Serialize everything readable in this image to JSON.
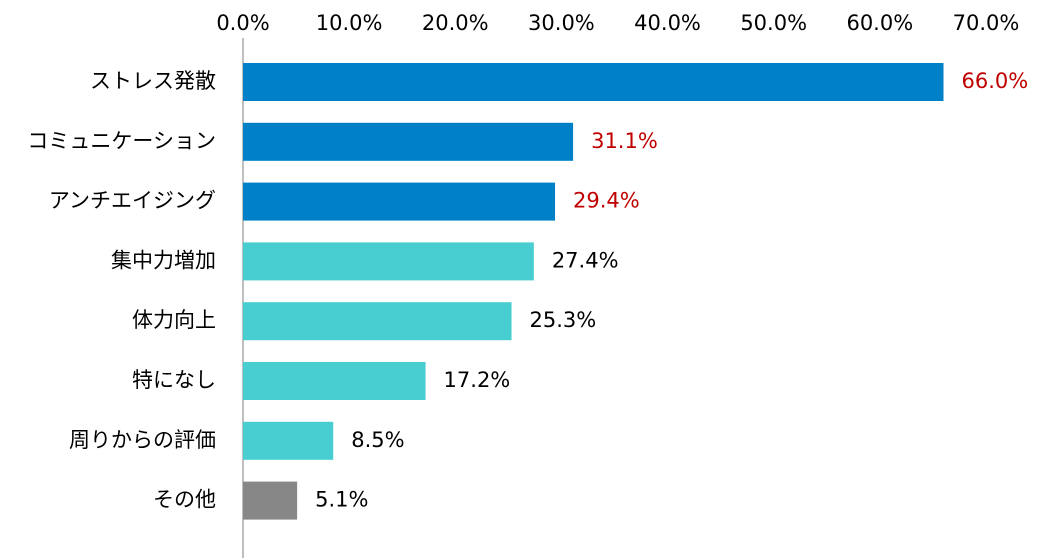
{
  "chart_data": {
    "type": "bar",
    "orientation": "horizontal",
    "title": "",
    "xlabel": "",
    "ylabel": "",
    "xlim": [
      0,
      70
    ],
    "x_ticks": [
      0,
      10,
      20,
      30,
      40,
      50,
      60,
      70
    ],
    "x_tick_labels": [
      "0.0%",
      "10.0%",
      "20.0%",
      "30.0%",
      "40.0%",
      "50.0%",
      "60.0%",
      "70.0%"
    ],
    "x_axis_position": "top",
    "grid": false,
    "legend": "none",
    "categories": [
      "ストレス発散",
      "コミュニケーション",
      "アンチエイジング",
      "集中力増加",
      "体力向上",
      "特になし",
      "周りからの評価",
      "その他"
    ],
    "values": [
      66.0,
      31.1,
      29.4,
      27.4,
      25.3,
      17.2,
      8.5,
      5.1
    ],
    "value_labels": [
      "66.0%",
      "31.1%",
      "29.4%",
      "27.4%",
      "25.3%",
      "17.2%",
      "8.5%",
      "5.1%"
    ],
    "bar_colors": [
      "#0080c6",
      "#0080c6",
      "#0080c6",
      "#48cdd0",
      "#48cdd0",
      "#48cdd0",
      "#48cdd0",
      "#878787"
    ],
    "label_colors": [
      "#c00000",
      "#c00000",
      "#c00000",
      "#000000",
      "#000000",
      "#000000",
      "#000000",
      "#000000"
    ],
    "axis_color": "#bfbfbf"
  }
}
